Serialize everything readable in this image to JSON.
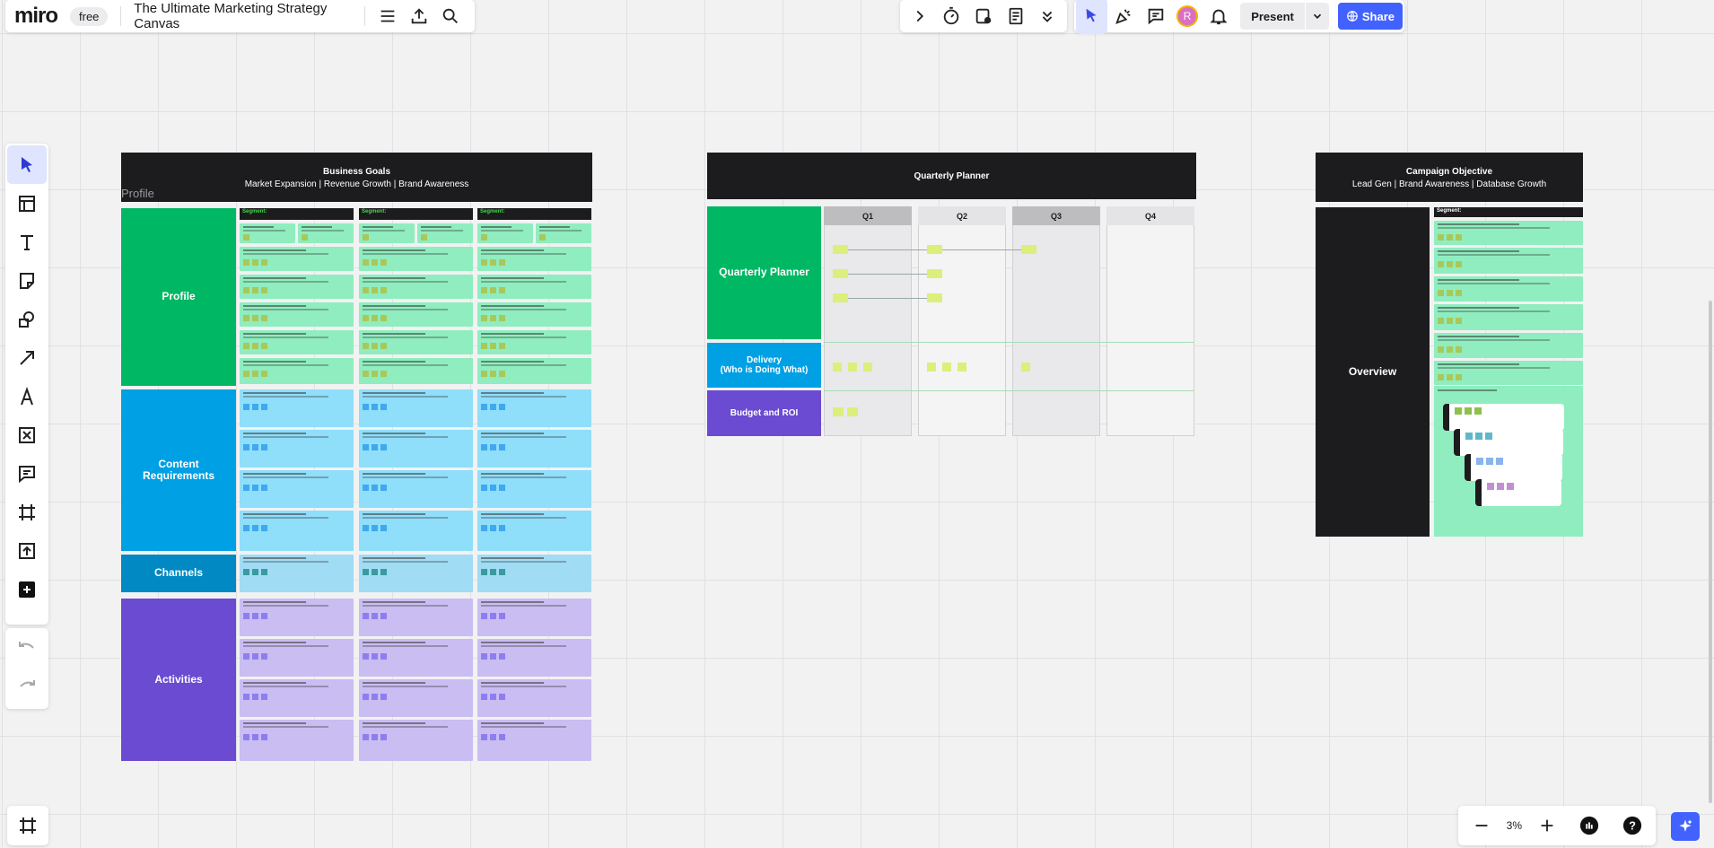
{
  "app": {
    "logo": "miro",
    "plan_badge": "free",
    "board_title": "The Ultimate Marketing Strategy Canvas"
  },
  "topbar": {
    "present_label": "Present",
    "share_label": "Share",
    "avatar_initial": "R"
  },
  "zoom": {
    "level": "3%"
  },
  "canvas": {
    "business_goals": {
      "title": "Business Goals",
      "subtitle": "Market Expansion | Revenue Growth | Brand Awareness",
      "ghost_label": "Profile",
      "segment_label": "Segment:",
      "rows": {
        "profile": "Profile",
        "content": "Content Requirements",
        "channels": "Channels",
        "activities": "Activities"
      }
    },
    "quarterly_planner": {
      "title": "Quarterly Planner",
      "quarters": [
        "Q1",
        "Q2",
        "Q3",
        "Q4"
      ],
      "rows": {
        "planner": "Quarterly Planner",
        "delivery": "Delivery\n(Who is Doing What)",
        "budget": "Budget and ROI"
      }
    },
    "campaign_objective": {
      "title": "Campaign Objective",
      "subtitle": "Lead Gen | Brand Awareness | Database Growth",
      "overview_label": "Overview",
      "segment_label": "Segment:"
    }
  },
  "colors": {
    "green": "#00b863",
    "light_green": "#8fedbf",
    "blue": "#00a0e4",
    "light_blue": "#8fdefa",
    "channels": "#0089c3",
    "channels_light": "#a0dcf3",
    "purple": "#6a4bd1",
    "light_purple": "#c9bdf2",
    "dark": "#1c1b1e",
    "accent": "#4262ff"
  }
}
